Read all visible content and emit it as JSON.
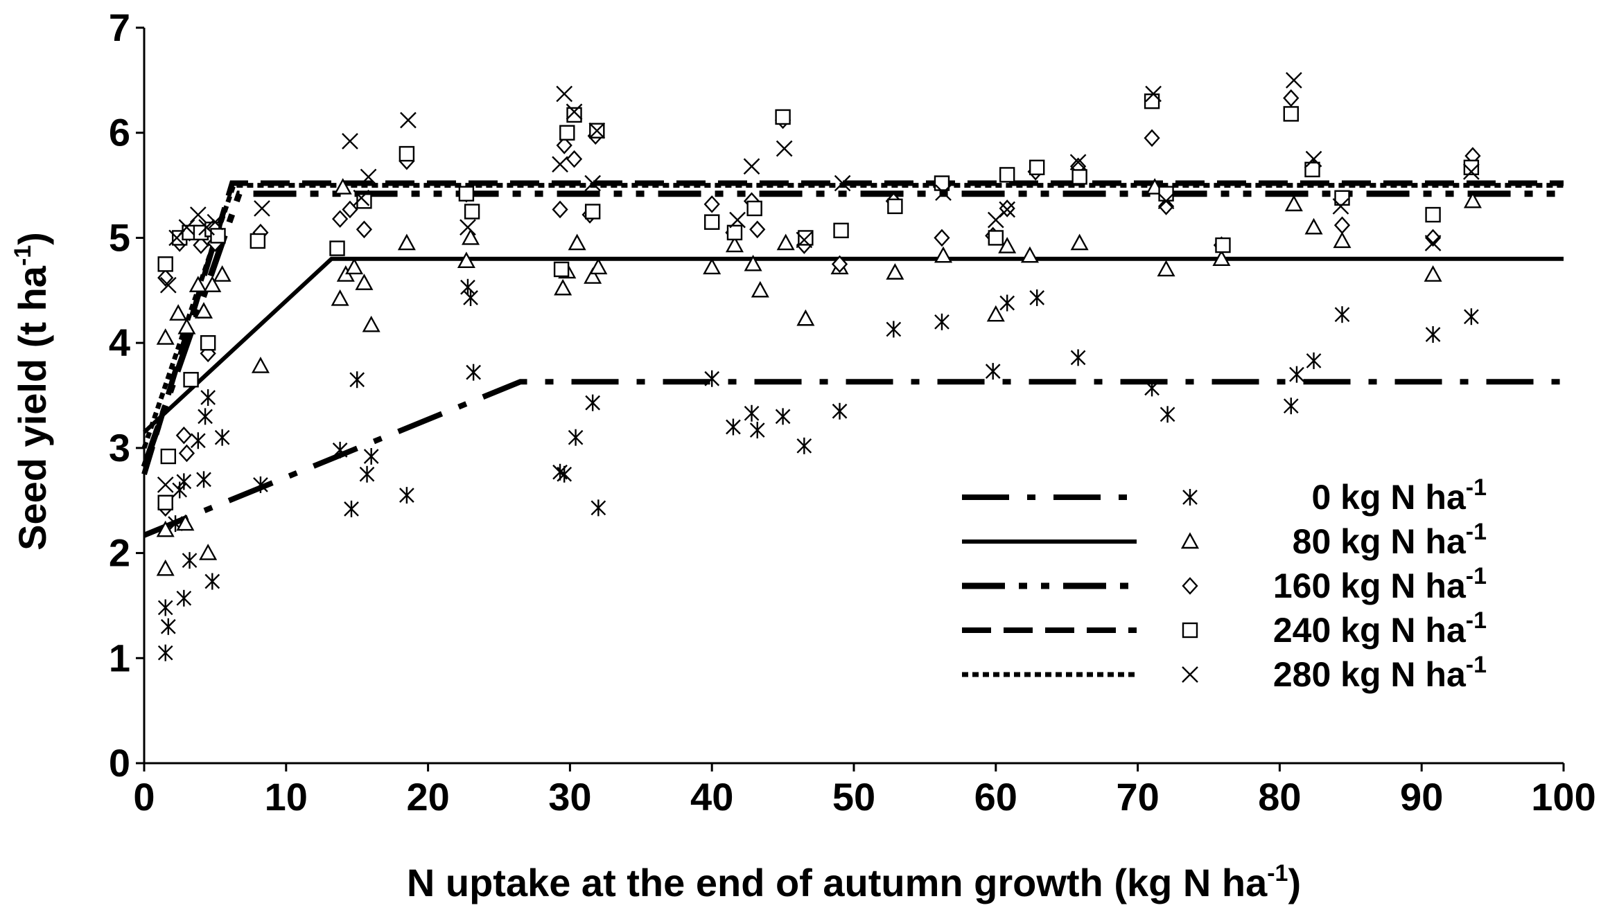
{
  "chart_data": {
    "type": "scatter",
    "xlabel": {
      "main": "N uptake at the end of autumn growth (kg N ha",
      "sup": "-1",
      "close": ")"
    },
    "ylabel": {
      "main": "Seed yield (t ha",
      "sup": "-1",
      "close": ")"
    },
    "xlim": [
      0,
      100
    ],
    "ylim": [
      0,
      7
    ],
    "xticks": [
      "0",
      "10",
      "20",
      "30",
      "40",
      "50",
      "60",
      "70",
      "80",
      "90",
      "100"
    ],
    "yticks": [
      "0",
      "1",
      "2",
      "3",
      "4",
      "5",
      "6",
      "7"
    ],
    "grid": false,
    "legend_position": "lower-right",
    "series": [
      {
        "id": "n0",
        "name": "0 kg N ha",
        "name_sup": "-1",
        "marker": "asterisk",
        "line_style": "dash-dot",
        "fit": [
          [
            0,
            2.17
          ],
          [
            26.5,
            3.63
          ],
          [
            100,
            3.63
          ]
        ],
        "points": [
          [
            1.5,
            1.05
          ],
          [
            1.7,
            1.3
          ],
          [
            1.5,
            1.48
          ],
          [
            2.2,
            2.28
          ],
          [
            2.8,
            1.57
          ],
          [
            3.2,
            1.93
          ],
          [
            4.8,
            1.73
          ],
          [
            2.5,
            2.6
          ],
          [
            2.8,
            2.68
          ],
          [
            4.2,
            2.7
          ],
          [
            3.8,
            3.07
          ],
          [
            5.5,
            3.1
          ],
          [
            4.3,
            3.3
          ],
          [
            4.5,
            3.48
          ],
          [
            8.2,
            2.65
          ],
          [
            13.8,
            2.98
          ],
          [
            14.6,
            2.42
          ],
          [
            15.0,
            3.65
          ],
          [
            15.7,
            2.75
          ],
          [
            16.0,
            2.92
          ],
          [
            18.5,
            2.55
          ],
          [
            22.8,
            4.53
          ],
          [
            23.0,
            4.43
          ],
          [
            23.2,
            3.72
          ],
          [
            29.3,
            2.77
          ],
          [
            29.6,
            2.75
          ],
          [
            30.4,
            3.1
          ],
          [
            31.6,
            3.43
          ],
          [
            32.0,
            2.43
          ],
          [
            40.0,
            3.66
          ],
          [
            41.5,
            3.2
          ],
          [
            42.8,
            3.33
          ],
          [
            43.2,
            3.17
          ],
          [
            45.0,
            3.3
          ],
          [
            46.5,
            3.02
          ],
          [
            49.0,
            3.35
          ],
          [
            52.8,
            4.13
          ],
          [
            56.2,
            4.2
          ],
          [
            59.8,
            3.73
          ],
          [
            60.8,
            4.38
          ],
          [
            62.9,
            4.43
          ],
          [
            65.8,
            3.86
          ],
          [
            71.0,
            3.57
          ],
          [
            72.1,
            3.32
          ],
          [
            80.8,
            3.4
          ],
          [
            81.2,
            3.7
          ],
          [
            82.4,
            3.83
          ],
          [
            84.4,
            4.27
          ],
          [
            90.8,
            4.08
          ],
          [
            93.5,
            4.25
          ]
        ]
      },
      {
        "id": "n80",
        "name": "80 kg N ha",
        "name_sup": "-1",
        "marker": "triangle",
        "line_style": "solid",
        "fit": [
          [
            0,
            3.15
          ],
          [
            13.2,
            4.8
          ],
          [
            100,
            4.8
          ]
        ],
        "points": [
          [
            1.5,
            1.85
          ],
          [
            1.5,
            2.22
          ],
          [
            2.9,
            2.28
          ],
          [
            4.5,
            2.0
          ],
          [
            1.5,
            4.05
          ],
          [
            2.4,
            4.28
          ],
          [
            3.0,
            4.15
          ],
          [
            3.8,
            4.55
          ],
          [
            4.2,
            4.3
          ],
          [
            4.8,
            4.55
          ],
          [
            5.5,
            4.65
          ],
          [
            8.2,
            3.78
          ],
          [
            13.8,
            4.42
          ],
          [
            14.2,
            4.65
          ],
          [
            14.8,
            4.72
          ],
          [
            15.5,
            4.57
          ],
          [
            16.0,
            4.17
          ],
          [
            14.0,
            5.48
          ],
          [
            18.5,
            4.95
          ],
          [
            22.7,
            4.78
          ],
          [
            23.0,
            5.0
          ],
          [
            29.5,
            4.52
          ],
          [
            29.8,
            4.68
          ],
          [
            30.5,
            4.95
          ],
          [
            31.6,
            4.63
          ],
          [
            32.0,
            4.72
          ],
          [
            40.0,
            4.72
          ],
          [
            41.6,
            4.93
          ],
          [
            42.9,
            4.75
          ],
          [
            43.4,
            4.5
          ],
          [
            45.2,
            4.95
          ],
          [
            46.6,
            4.23
          ],
          [
            49.0,
            4.72
          ],
          [
            52.9,
            4.67
          ],
          [
            56.3,
            4.83
          ],
          [
            60.0,
            4.27
          ],
          [
            60.8,
            4.92
          ],
          [
            62.4,
            4.83
          ],
          [
            65.9,
            4.95
          ],
          [
            71.2,
            5.48
          ],
          [
            72.0,
            4.7
          ],
          [
            75.9,
            4.8
          ],
          [
            81.0,
            5.32
          ],
          [
            82.4,
            5.1
          ],
          [
            84.4,
            4.97
          ],
          [
            90.8,
            4.65
          ],
          [
            93.6,
            5.35
          ]
        ]
      },
      {
        "id": "n160",
        "name": "160 kg N ha",
        "name_sup": "-1",
        "marker": "diamond",
        "line_style": "dash-dot-dot",
        "fit": [
          [
            0,
            2.82
          ],
          [
            6.7,
            5.42
          ],
          [
            100,
            5.42
          ]
        ],
        "points": [
          [
            1.5,
            2.43
          ],
          [
            1.5,
            4.62
          ],
          [
            2.8,
            3.12
          ],
          [
            3.0,
            2.95
          ],
          [
            4.5,
            3.9
          ],
          [
            2.5,
            4.95
          ],
          [
            3.2,
            5.05
          ],
          [
            4.0,
            4.93
          ],
          [
            4.5,
            5.0
          ],
          [
            5.0,
            4.95
          ],
          [
            8.2,
            5.05
          ],
          [
            13.8,
            5.18
          ],
          [
            14.5,
            5.27
          ],
          [
            15.5,
            5.08
          ],
          [
            18.5,
            5.73
          ],
          [
            22.7,
            5.42
          ],
          [
            29.3,
            5.27
          ],
          [
            29.6,
            5.88
          ],
          [
            30.3,
            5.75
          ],
          [
            31.4,
            5.22
          ],
          [
            31.8,
            5.97
          ],
          [
            40.0,
            5.32
          ],
          [
            41.5,
            5.05
          ],
          [
            42.8,
            5.35
          ],
          [
            43.2,
            5.08
          ],
          [
            45.0,
            6.12
          ],
          [
            46.5,
            4.93
          ],
          [
            49.0,
            4.75
          ],
          [
            52.8,
            5.35
          ],
          [
            56.2,
            5.0
          ],
          [
            59.8,
            5.02
          ],
          [
            60.8,
            5.28
          ],
          [
            62.8,
            5.63
          ],
          [
            65.8,
            5.68
          ],
          [
            71.0,
            5.95
          ],
          [
            72.0,
            5.3
          ],
          [
            75.9,
            4.93
          ],
          [
            80.8,
            6.33
          ],
          [
            82.3,
            5.67
          ],
          [
            84.4,
            5.12
          ],
          [
            90.8,
            5.0
          ],
          [
            93.6,
            5.78
          ]
        ]
      },
      {
        "id": "n240",
        "name": "240 kg N ha",
        "name_sup": "-1",
        "marker": "square",
        "line_style": "dashed",
        "fit": [
          [
            0,
            2.75
          ],
          [
            6.2,
            5.52
          ],
          [
            100,
            5.52
          ]
        ],
        "points": [
          [
            1.5,
            2.48
          ],
          [
            1.7,
            2.92
          ],
          [
            3.3,
            3.65
          ],
          [
            4.5,
            4.0
          ],
          [
            1.5,
            4.75
          ],
          [
            2.5,
            5.0
          ],
          [
            3.2,
            5.05
          ],
          [
            4.0,
            5.05
          ],
          [
            4.8,
            5.08
          ],
          [
            5.2,
            5.02
          ],
          [
            8.0,
            4.97
          ],
          [
            13.6,
            4.9
          ],
          [
            15.5,
            5.35
          ],
          [
            18.5,
            5.8
          ],
          [
            22.7,
            5.42
          ],
          [
            23.1,
            5.25
          ],
          [
            29.4,
            4.7
          ],
          [
            29.8,
            6.0
          ],
          [
            30.3,
            6.17
          ],
          [
            31.6,
            5.25
          ],
          [
            31.9,
            6.02
          ],
          [
            40.0,
            5.15
          ],
          [
            41.6,
            5.05
          ],
          [
            43.0,
            5.28
          ],
          [
            45.0,
            6.15
          ],
          [
            46.6,
            5.0
          ],
          [
            49.1,
            5.07
          ],
          [
            52.9,
            5.3
          ],
          [
            56.2,
            5.52
          ],
          [
            60.0,
            5.0
          ],
          [
            60.8,
            5.6
          ],
          [
            62.9,
            5.67
          ],
          [
            65.9,
            5.58
          ],
          [
            71.0,
            6.3
          ],
          [
            72.0,
            5.42
          ],
          [
            76.0,
            4.93
          ],
          [
            80.8,
            6.18
          ],
          [
            82.3,
            5.65
          ],
          [
            84.4,
            5.38
          ],
          [
            90.8,
            5.22
          ],
          [
            93.5,
            5.67
          ]
        ]
      },
      {
        "id": "n280",
        "name": "280 kg N ha",
        "name_sup": "-1",
        "marker": "cross",
        "line_style": "dotted",
        "fit": [
          [
            0,
            3.0
          ],
          [
            6.3,
            5.5
          ],
          [
            100,
            5.5
          ]
        ],
        "points": [
          [
            1.5,
            2.65
          ],
          [
            1.7,
            4.55
          ],
          [
            2.3,
            5.0
          ],
          [
            3.0,
            5.1
          ],
          [
            3.8,
            5.22
          ],
          [
            4.4,
            5.1
          ],
          [
            5.0,
            5.15
          ],
          [
            8.3,
            5.28
          ],
          [
            14.5,
            5.92
          ],
          [
            15.3,
            5.38
          ],
          [
            15.8,
            5.58
          ],
          [
            18.6,
            6.12
          ],
          [
            22.8,
            5.1
          ],
          [
            29.3,
            5.7
          ],
          [
            29.6,
            6.37
          ],
          [
            30.3,
            6.2
          ],
          [
            31.6,
            5.52
          ],
          [
            31.9,
            6.02
          ],
          [
            41.8,
            5.17
          ],
          [
            42.8,
            5.68
          ],
          [
            45.1,
            5.85
          ],
          [
            46.5,
            4.98
          ],
          [
            49.2,
            5.52
          ],
          [
            56.3,
            5.43
          ],
          [
            60.0,
            5.17
          ],
          [
            60.8,
            5.27
          ],
          [
            65.8,
            5.72
          ],
          [
            71.1,
            6.37
          ],
          [
            72.0,
            5.35
          ],
          [
            81.0,
            6.5
          ],
          [
            82.4,
            5.75
          ],
          [
            84.3,
            5.3
          ],
          [
            90.8,
            4.95
          ],
          [
            93.5,
            5.63
          ]
        ]
      }
    ]
  }
}
